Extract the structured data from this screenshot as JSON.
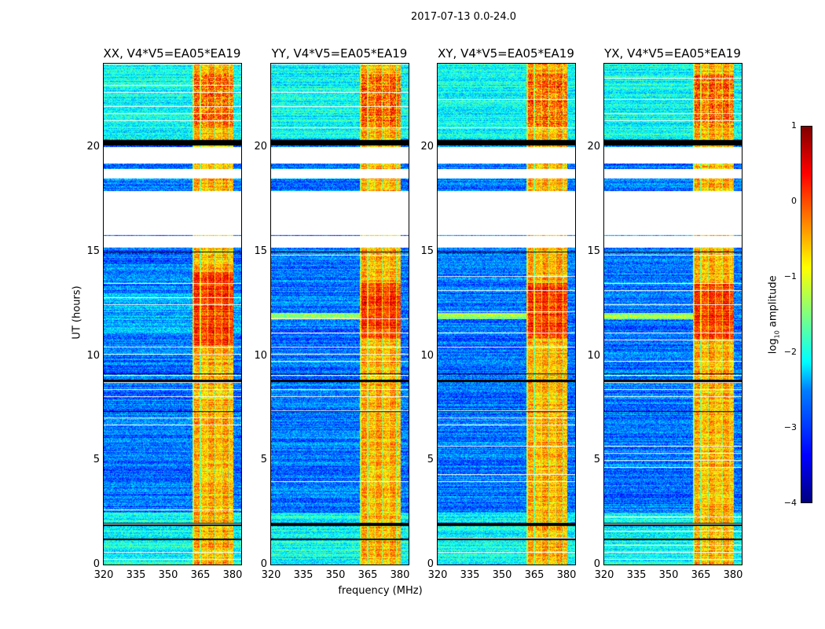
{
  "chart_data": {
    "type": "heatmap",
    "title": "2017-07-13 0.0-24.0",
    "xlabel": "frequency (MHz)",
    "ylabel": "UT (hours)",
    "xlim": [
      320,
      384
    ],
    "ylim": [
      0,
      24
    ],
    "xticks": [
      "320",
      "335",
      "350",
      "365",
      "380"
    ],
    "xtick_values": [
      320,
      335,
      350,
      365,
      380
    ],
    "yticks": [
      "0",
      "5",
      "10",
      "15",
      "20"
    ],
    "ytick_values": [
      0,
      5,
      10,
      15,
      20
    ],
    "panels": [
      {
        "title": "XX, V4*V5=EA05*EA19",
        "strong_band_ut": [
          10.5,
          14.0
        ]
      },
      {
        "title": "YY, V4*V5=EA05*EA19",
        "strong_band_ut": [
          10.8,
          13.5
        ]
      },
      {
        "title": "XY, V4*V5=EA05*EA19",
        "strong_band_ut": [
          10.8,
          13.5
        ]
      },
      {
        "title": "YX, V4*V5=EA05*EA19",
        "strong_band_ut": [
          10.8,
          13.5
        ]
      }
    ],
    "rfi_band_mhz": [
      361.5,
      380.5
    ],
    "flagged_ut_ranges": [
      [
        19.2,
        20.0
      ],
      [
        18.5,
        18.95
      ],
      [
        15.8,
        17.9
      ],
      [
        15.2,
        15.75
      ]
    ],
    "zero_ut_ranges": [
      [
        20.1,
        20.35
      ],
      [
        1.15,
        1.25
      ],
      [
        1.85,
        2.0
      ],
      [
        8.75,
        8.85
      ],
      [
        9.1,
        9.15
      ],
      [
        7.3,
        7.35
      ],
      [
        14.95,
        15.0
      ]
    ],
    "colorbar": {
      "label": "log10 amplitude",
      "label_main": "log",
      "label_sub": "10",
      "label_rest": " amplitude",
      "range": [
        -4,
        1
      ],
      "ticks": [
        "1",
        "0",
        "−1",
        "−2",
        "−3",
        "−4"
      ],
      "tick_values": [
        1,
        0,
        -1,
        -2,
        -3,
        -4
      ],
      "colormap": "jet"
    }
  }
}
